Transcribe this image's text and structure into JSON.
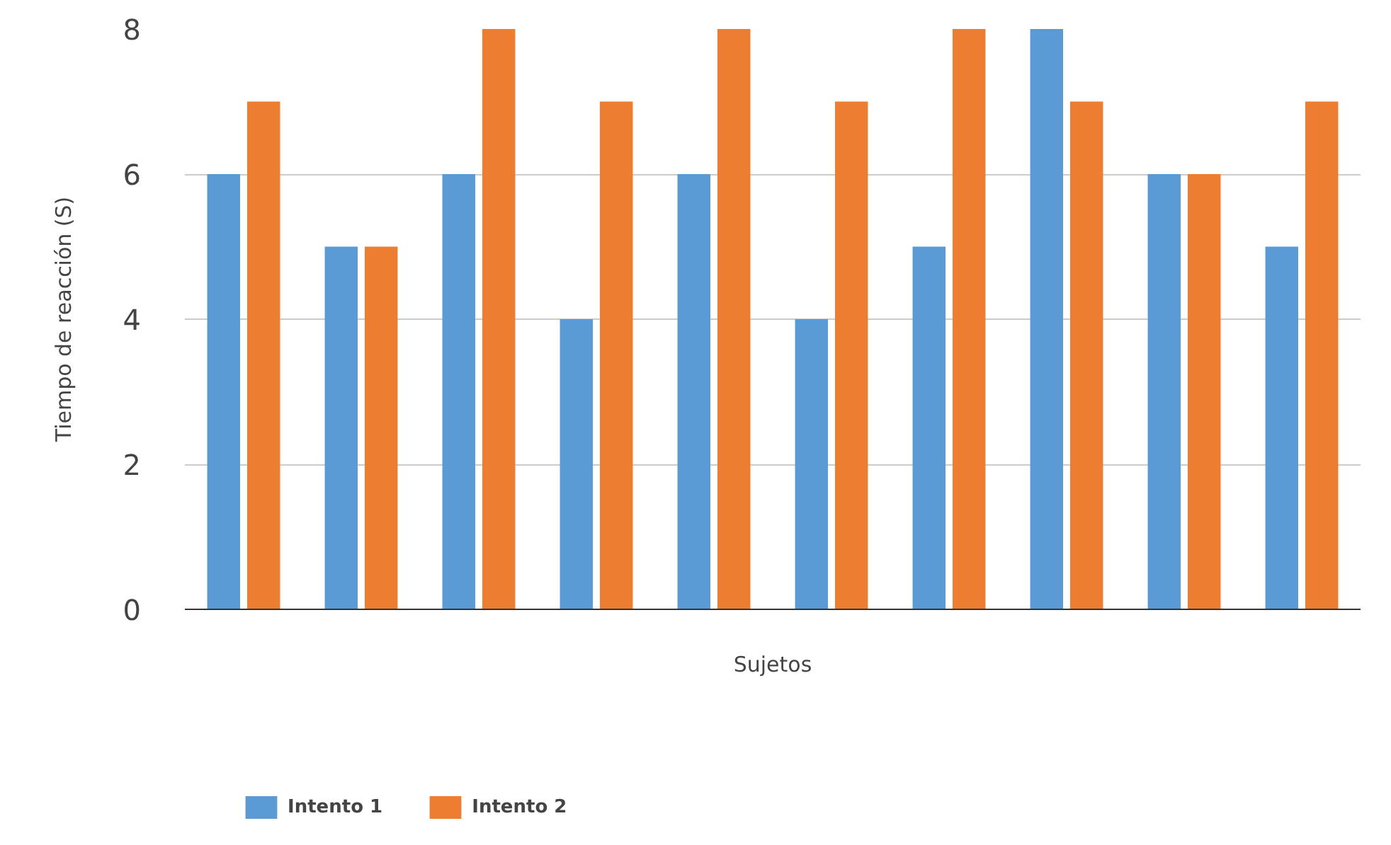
{
  "chart_data": {
    "type": "bar",
    "xlabel": "Sujetos",
    "ylabel": "Tiempo de reacción (S)",
    "categories": [
      null,
      null,
      null,
      null,
      null,
      null,
      null,
      null,
      null,
      null
    ],
    "series": [
      {
        "name": "Intento 1",
        "color": "#5b9bd5",
        "values": [
          6,
          5,
          6,
          4,
          6,
          4,
          5,
          8,
          6,
          5
        ]
      },
      {
        "name": "Intento 2",
        "color": "#ed7d31",
        "values": [
          7,
          5,
          8,
          7,
          8,
          7,
          8,
          7,
          6,
          7
        ]
      }
    ],
    "ylim": [
      0,
      8
    ],
    "yticks": [
      0,
      2,
      4,
      6,
      8
    ],
    "grid": "y",
    "legend": "bottom left",
    "tick_labels": "y"
  }
}
